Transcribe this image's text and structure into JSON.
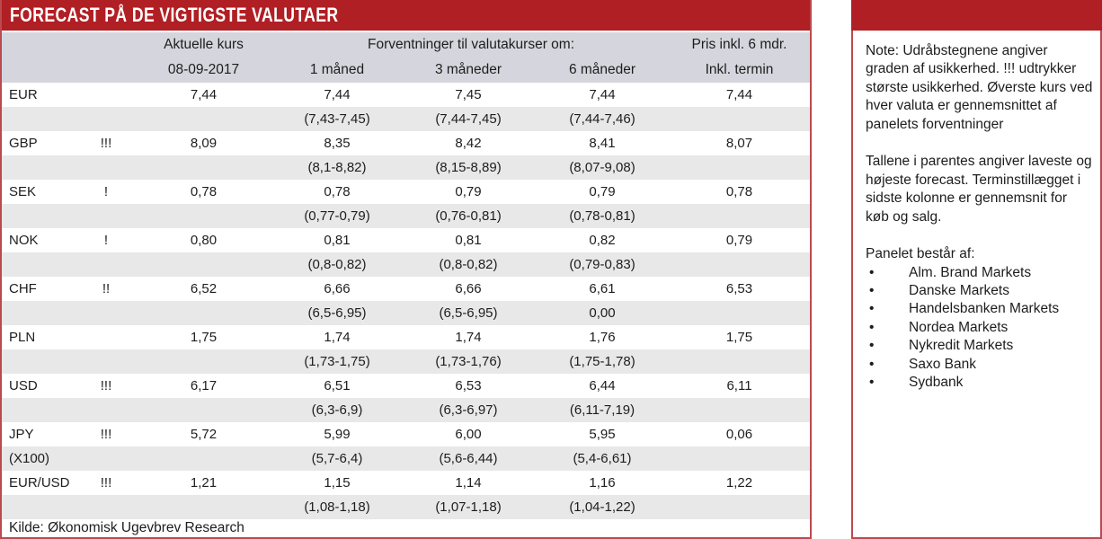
{
  "title": "FORECAST PÅ DE VIGTIGSTE VALUTAER",
  "table": {
    "header": {
      "current_label": "Aktuelle kurs",
      "current_date": "08-09-2017",
      "forecast_label": "Forventninger til valutakurser om:",
      "col_1m": "1 måned",
      "col_3m": "3 måneder",
      "col_6m": "6 måneder",
      "price_label": "Pris inkl. 6 mdr.",
      "price_sub": "Inkl. termin"
    },
    "rows": [
      {
        "currency": "EUR",
        "sub_label": "",
        "uncertainty": "",
        "current": "7,44",
        "forecast_1m": "7,44",
        "forecast_3m": "7,45",
        "forecast_6m": "7,44",
        "termin": "7,44",
        "range_1m": "(7,43-7,45)",
        "range_3m": "(7,44-7,45)",
        "range_6m": "(7,44-7,46)"
      },
      {
        "currency": "GBP",
        "sub_label": "",
        "uncertainty": "!!!",
        "current": "8,09",
        "forecast_1m": "8,35",
        "forecast_3m": "8,42",
        "forecast_6m": "8,41",
        "termin": "8,07",
        "range_1m": "(8,1-8,82)",
        "range_3m": "(8,15-8,89)",
        "range_6m": "(8,07-9,08)"
      },
      {
        "currency": "SEK",
        "sub_label": "",
        "uncertainty": "!",
        "current": "0,78",
        "forecast_1m": "0,78",
        "forecast_3m": "0,79",
        "forecast_6m": "0,79",
        "termin": "0,78",
        "range_1m": "(0,77-0,79)",
        "range_3m": "(0,76-0,81)",
        "range_6m": "(0,78-0,81)"
      },
      {
        "currency": "NOK",
        "sub_label": "",
        "uncertainty": "!",
        "current": "0,80",
        "forecast_1m": "0,81",
        "forecast_3m": "0,81",
        "forecast_6m": "0,82",
        "termin": "0,79",
        "range_1m": "(0,8-0,82)",
        "range_3m": "(0,8-0,82)",
        "range_6m": "(0,79-0,83)"
      },
      {
        "currency": "CHF",
        "sub_label": "",
        "uncertainty": "!!",
        "current": "6,52",
        "forecast_1m": "6,66",
        "forecast_3m": "6,66",
        "forecast_6m": "6,61",
        "termin": "6,53",
        "range_1m": "(6,5-6,95)",
        "range_3m": "(6,5-6,95)",
        "range_6m": "0,00"
      },
      {
        "currency": "PLN",
        "sub_label": "",
        "uncertainty": "",
        "current": "1,75",
        "forecast_1m": "1,74",
        "forecast_3m": "1,74",
        "forecast_6m": "1,76",
        "termin": "1,75",
        "range_1m": "(1,73-1,75)",
        "range_3m": "(1,73-1,76)",
        "range_6m": "(1,75-1,78)"
      },
      {
        "currency": "USD",
        "sub_label": "",
        "uncertainty": "!!!",
        "current": "6,17",
        "forecast_1m": "6,51",
        "forecast_3m": "6,53",
        "forecast_6m": "6,44",
        "termin": "6,11",
        "range_1m": "(6,3-6,9)",
        "range_3m": "(6,3-6,97)",
        "range_6m": "(6,11-7,19)"
      },
      {
        "currency": "JPY",
        "sub_label": "(X100)",
        "uncertainty": "!!!",
        "current": "5,72",
        "forecast_1m": "5,99",
        "forecast_3m": "6,00",
        "forecast_6m": "5,95",
        "termin": "0,06",
        "range_1m": "(5,7-6,4)",
        "range_3m": "(5,6-6,44)",
        "range_6m": "(5,4-6,61)"
      },
      {
        "currency": "EUR/USD",
        "sub_label": "",
        "uncertainty": "!!!",
        "current": "1,21",
        "forecast_1m": "1,15",
        "forecast_3m": "1,14",
        "forecast_6m": "1,16",
        "termin": "1,22",
        "range_1m": "(1,08-1,18)",
        "range_3m": "(1,07-1,18)",
        "range_6m": "(1,04-1,22)"
      }
    ],
    "source": "Kilde: Økonomisk Ugevbrev Research"
  },
  "note_panel": {
    "paragraph1": "Note: Udråbstegnene angiver graden af usikkerhed. !!! udtrykker største usikkerhed. Øverste kurs ved hver valuta er gennemsnittet af panelets forventninger",
    "paragraph2": "Tallene i parentes angiver laveste og højeste forecast. Terminstillægget i sidste kolonne er gennemsnit for køb og salg.",
    "panel_heading": "Panelet består af:",
    "bullet_glyph": "•",
    "panel_members": [
      "Alm. Brand Markets",
      "Danske Markets",
      "Handelsbanken Markets",
      "Nordea Markets",
      "Nykredit Markets",
      "Saxo Bank",
      "Sydbank"
    ]
  },
  "colors": {
    "header_red": "#b01f24",
    "border_red": "#bb4a50",
    "header_bg": "#d5d6dd",
    "stripe_bg": "#e8e8e8"
  }
}
